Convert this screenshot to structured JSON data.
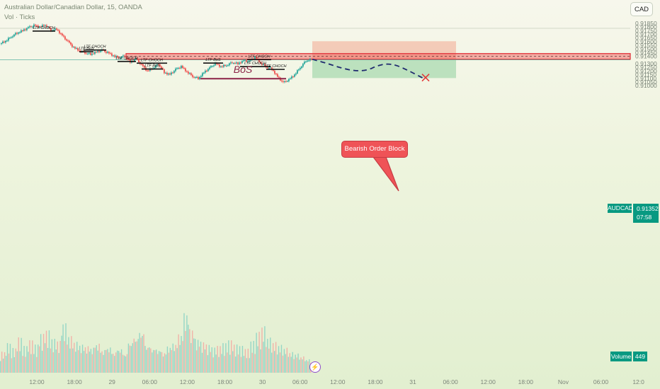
{
  "header": {
    "title": "Australian Dollar/Canadian Dollar, 15, OANDA",
    "subtitle": "Vol · Ticks"
  },
  "currency_button": "CAD",
  "price_axis_labels": [
    "0.91850",
    "0.91800",
    "0.91750",
    "0.91700",
    "0.91650",
    "0.91600",
    "0.91550",
    "0.91500",
    "0.91450",
    "0.91400",
    "0.91300",
    "0.91250",
    "0.91200",
    "0.91150",
    "0.91100",
    "0.91050",
    "0.91000"
  ],
  "time_axis_labels": [
    "12:00",
    "18:00",
    "29",
    "06:00",
    "12:00",
    "18:00",
    "30",
    "06:00",
    "12:00",
    "18:00",
    "31",
    "06:00",
    "12:00",
    "18:00",
    "Nov",
    "06:00",
    "12:0"
  ],
  "symbol_tag": "AUDCAD",
  "last_price": "0.91352",
  "countdown": "07:58",
  "volume_label": "Volume",
  "volume_value": "449",
  "order_block_label": "Bearish Order Block",
  "structure_labels": [
    "LTF CHOCH",
    "LTF BoS",
    "LTF CHOCH",
    "LTF CHOCH",
    "LTF CHOCH",
    "LTF BoS",
    "LTF BoS",
    "LTF CHOCH",
    "LTF CHOCH",
    "LTF CHOCH"
  ],
  "bos_label": "BoS",
  "colors": {
    "up": "#26a69a",
    "down": "#ef5350",
    "order_block": "#ef5350",
    "projection": "#1f2a6e",
    "bos": "#8b2346"
  },
  "chart_data": {
    "type": "candlestick",
    "symbol": "AUDCAD",
    "timeframe": "15",
    "ylim": [
      0.9098,
      0.9187
    ],
    "price_ticks": [
      0.9185,
      0.918,
      0.9175,
      0.917,
      0.9165,
      0.916,
      0.9155,
      0.915,
      0.9145,
      0.914,
      0.913,
      0.9125,
      0.912,
      0.9115,
      0.911,
      0.9105,
      0.91
    ],
    "last_price": 0.91352,
    "order_block": {
      "top": 0.91438,
      "bottom": 0.9136,
      "mid": 0.91399
    },
    "trade_zones": {
      "entry": 0.9136,
      "stop_top": 0.91606,
      "target": 0.91104
    },
    "bos_level": 0.91096,
    "projection_path": [
      0.9136,
      0.9131,
      0.9124,
      0.912,
      0.9121,
      0.9127,
      0.913,
      0.9128,
      0.912,
      0.911
    ],
    "target_marker": 0.9111,
    "close_path": [
      0.9157,
      0.9161,
      0.9167,
      0.9172,
      0.9175,
      0.9179,
      0.9182,
      0.918,
      0.9183,
      0.9176,
      0.9177,
      0.9168,
      0.916,
      0.9152,
      0.9148,
      0.9145,
      0.9143,
      0.9146,
      0.9148,
      0.9145,
      0.9141,
      0.9138,
      0.9141,
      0.9132,
      0.9137,
      0.9128,
      0.912,
      0.9124,
      0.913,
      0.9118,
      0.9115,
      0.9122,
      0.9126,
      0.9119,
      0.9113,
      0.911,
      0.9118,
      0.9124,
      0.913,
      0.9126,
      0.9128,
      0.9132,
      0.913,
      0.9134,
      0.9133,
      0.9139,
      0.9131,
      0.9126,
      0.9123,
      0.9112,
      0.9104,
      0.9108,
      0.9115,
      0.9125,
      0.9134,
      0.9136
    ],
    "volume_heights": [
      0.3,
      0.42,
      0.35,
      0.5,
      0.38,
      0.46,
      0.4,
      0.55,
      0.6,
      0.48,
      0.45,
      0.7,
      0.52,
      0.44,
      0.4,
      0.38,
      0.36,
      0.42,
      0.33,
      0.37,
      0.3,
      0.35,
      0.28,
      0.45,
      0.52,
      0.6,
      0.4,
      0.36,
      0.34,
      0.3,
      0.38,
      0.42,
      0.55,
      0.85,
      0.62,
      0.48,
      0.44,
      0.4,
      0.36,
      0.38,
      0.42,
      0.46,
      0.4,
      0.38,
      0.34,
      0.45,
      0.58,
      0.66,
      0.5,
      0.44,
      0.4,
      0.36,
      0.3,
      0.28,
      0.24,
      0.2
    ]
  }
}
